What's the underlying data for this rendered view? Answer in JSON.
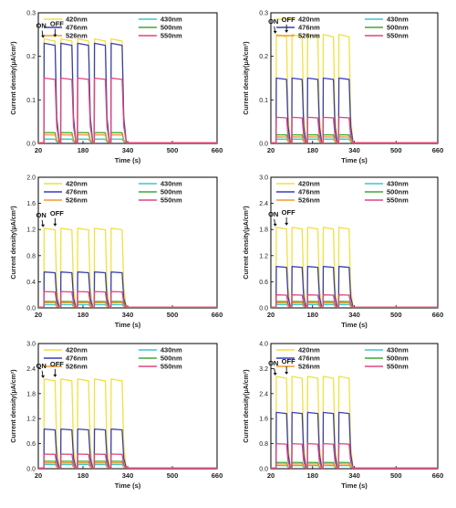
{
  "chart_data": [
    {
      "type": "line",
      "xlabel": "Time (s)",
      "ylabel": "Current density(μA/cm²)",
      "xlim": [
        20,
        660
      ],
      "xticks": [
        "20",
        "180",
        "340",
        "500",
        "660"
      ],
      "ylim": [
        0,
        0.3
      ],
      "yticks": [
        "0.0",
        "0.1",
        "0.2",
        "0.3"
      ],
      "on_off_periods": [
        [
          40,
          80
        ],
        [
          100,
          140
        ],
        [
          160,
          200
        ],
        [
          220,
          260
        ],
        [
          280,
          320
        ]
      ],
      "annotations": [
        "ON",
        "OFF"
      ],
      "series": [
        {
          "name": "420nm",
          "color": "#f0e040",
          "on_level": 0.24
        },
        {
          "name": "430nm",
          "color": "#3ec6c8",
          "on_level": 0.01
        },
        {
          "name": "476nm",
          "color": "#3a3fb0",
          "on_level": 0.23
        },
        {
          "name": "500nm",
          "color": "#3fa838",
          "on_level": 0.025
        },
        {
          "name": "526nm",
          "color": "#f29a2e",
          "on_level": 0.02
        },
        {
          "name": "550nm",
          "color": "#e0457e",
          "on_level": 0.15
        }
      ]
    },
    {
      "type": "line",
      "xlabel": "Time (s)",
      "ylabel": "Current density(μA/cm²)",
      "xlim": [
        20,
        660
      ],
      "xticks": [
        "20",
        "180",
        "340",
        "500",
        "660"
      ],
      "ylim": [
        0,
        0.3
      ],
      "yticks": [
        "0.0",
        "0.1",
        "0.2",
        "0.3"
      ],
      "on_off_periods": [
        [
          40,
          80
        ],
        [
          100,
          140
        ],
        [
          160,
          200
        ],
        [
          220,
          260
        ],
        [
          280,
          320
        ]
      ],
      "annotations": [
        "ON",
        "OFF"
      ],
      "series": [
        {
          "name": "420nm",
          "color": "#f0e040",
          "on_level": 0.25
        },
        {
          "name": "430nm",
          "color": "#3ec6c8",
          "on_level": 0.01
        },
        {
          "name": "476nm",
          "color": "#3a3fb0",
          "on_level": 0.15
        },
        {
          "name": "500nm",
          "color": "#3fa838",
          "on_level": 0.02
        },
        {
          "name": "526nm",
          "color": "#f29a2e",
          "on_level": 0.015
        },
        {
          "name": "550nm",
          "color": "#e0457e",
          "on_level": 0.06
        }
      ]
    },
    {
      "type": "line",
      "xlabel": "Time (s)",
      "ylabel": "Current density(μA/cm²)",
      "xlim": [
        20,
        660
      ],
      "xticks": [
        "20",
        "180",
        "340",
        "500",
        "660"
      ],
      "ylim": [
        0,
        2.0
      ],
      "yticks": [
        "0.0",
        "0.4",
        "0.8",
        "1.2",
        "1.6",
        "2.0"
      ],
      "on_off_periods": [
        [
          40,
          80
        ],
        [
          100,
          140
        ],
        [
          160,
          200
        ],
        [
          220,
          260
        ],
        [
          280,
          320
        ]
      ],
      "annotations": [
        "ON",
        "OFF"
      ],
      "series": [
        {
          "name": "420nm",
          "color": "#f0e040",
          "on_level": 1.22
        },
        {
          "name": "430nm",
          "color": "#3ec6c8",
          "on_level": 0.05
        },
        {
          "name": "476nm",
          "color": "#3a3fb0",
          "on_level": 0.55
        },
        {
          "name": "500nm",
          "color": "#3fa838",
          "on_level": 0.1
        },
        {
          "name": "526nm",
          "color": "#f29a2e",
          "on_level": 0.08
        },
        {
          "name": "550nm",
          "color": "#e0457e",
          "on_level": 0.25
        }
      ]
    },
    {
      "type": "line",
      "xlabel": "Time (s)",
      "ylabel": "Current density(μA/cm²)",
      "xlim": [
        20,
        660
      ],
      "xticks": [
        "20",
        "180",
        "340",
        "500",
        "660"
      ],
      "ylim": [
        0,
        3.0
      ],
      "yticks": [
        "0.0",
        "0.6",
        "1.2",
        "1.8",
        "2.4",
        "3.0"
      ],
      "on_off_periods": [
        [
          40,
          80
        ],
        [
          100,
          140
        ],
        [
          160,
          200
        ],
        [
          220,
          260
        ],
        [
          280,
          320
        ]
      ],
      "annotations": [
        "ON",
        "OFF"
      ],
      "series": [
        {
          "name": "420nm",
          "color": "#f0e040",
          "on_level": 1.85
        },
        {
          "name": "430nm",
          "color": "#3ec6c8",
          "on_level": 0.08
        },
        {
          "name": "476nm",
          "color": "#3a3fb0",
          "on_level": 0.95
        },
        {
          "name": "500nm",
          "color": "#3fa838",
          "on_level": 0.15
        },
        {
          "name": "526nm",
          "color": "#f29a2e",
          "on_level": 0.12
        },
        {
          "name": "550nm",
          "color": "#e0457e",
          "on_level": 0.3
        }
      ]
    },
    {
      "type": "line",
      "xlabel": "Time (s)",
      "ylabel": "Current density(μA/cm²)",
      "xlim": [
        20,
        660
      ],
      "xticks": [
        "20",
        "180",
        "340",
        "500",
        "660"
      ],
      "ylim": [
        0,
        3.0
      ],
      "yticks": [
        "0.0",
        "0.6",
        "1.2",
        "1.8",
        "2.4",
        "3.0"
      ],
      "on_off_periods": [
        [
          40,
          80
        ],
        [
          100,
          140
        ],
        [
          160,
          200
        ],
        [
          220,
          260
        ],
        [
          280,
          320
        ]
      ],
      "annotations": [
        "ON",
        "OFF"
      ],
      "series": [
        {
          "name": "420nm",
          "color": "#f0e040",
          "on_level": 2.15
        },
        {
          "name": "430nm",
          "color": "#3ec6c8",
          "on_level": 0.1
        },
        {
          "name": "476nm",
          "color": "#3a3fb0",
          "on_level": 0.95
        },
        {
          "name": "500nm",
          "color": "#3fa838",
          "on_level": 0.18
        },
        {
          "name": "526nm",
          "color": "#f29a2e",
          "on_level": 0.14
        },
        {
          "name": "550nm",
          "color": "#e0457e",
          "on_level": 0.35
        }
      ]
    },
    {
      "type": "line",
      "xlabel": "Time (s)",
      "ylabel": "Current density(μA/cm²)",
      "xlim": [
        20,
        660
      ],
      "xticks": [
        "20",
        "180",
        "340",
        "500",
        "660"
      ],
      "ylim": [
        0,
        4.0
      ],
      "yticks": [
        "0.0",
        "0.8",
        "1.6",
        "2.4",
        "3.2",
        "4.0"
      ],
      "on_off_periods": [
        [
          40,
          80
        ],
        [
          100,
          140
        ],
        [
          160,
          200
        ],
        [
          220,
          260
        ],
        [
          280,
          320
        ]
      ],
      "annotations": [
        "ON",
        "OFF"
      ],
      "series": [
        {
          "name": "420nm",
          "color": "#f0e040",
          "on_level": 2.95
        },
        {
          "name": "430nm",
          "color": "#3ec6c8",
          "on_level": 0.1
        },
        {
          "name": "476nm",
          "color": "#3a3fb0",
          "on_level": 1.8
        },
        {
          "name": "500nm",
          "color": "#3fa838",
          "on_level": 0.2
        },
        {
          "name": "526nm",
          "color": "#f29a2e",
          "on_level": 0.15
        },
        {
          "name": "550nm",
          "color": "#e0457e",
          "on_level": 0.8
        }
      ]
    }
  ]
}
